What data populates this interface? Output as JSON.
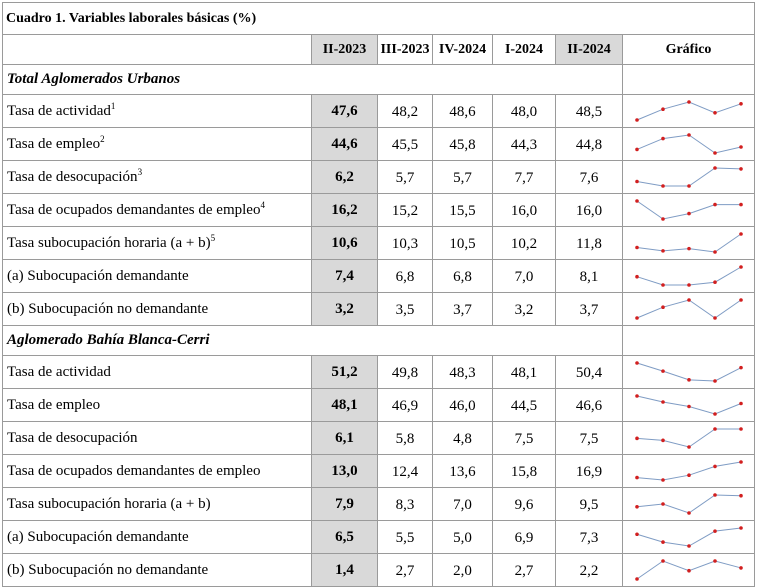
{
  "title": "Cuadro 1. Variables laborales básicas (%)",
  "headers": [
    "II-2023",
    "III-2023",
    "IV-2024",
    "I-2024",
    "II-2024",
    "Gráfico"
  ],
  "sections": [
    {
      "name": "Total Aglomerados Urbanos",
      "rows": [
        {
          "label": "Tasa de actividad",
          "sup": "1",
          "values": [
            "47,6",
            "48,2",
            "48,6",
            "48,0",
            "48,5"
          ]
        },
        {
          "label": "Tasa de empleo",
          "sup": "2",
          "values": [
            "44,6",
            "45,5",
            "45,8",
            "44,3",
            "44,8"
          ]
        },
        {
          "label": "Tasa de desocupación",
          "sup": "3",
          "values": [
            "6,2",
            "5,7",
            "5,7",
            "7,7",
            "7,6"
          ]
        },
        {
          "label": "Tasa de ocupados demandantes de empleo",
          "sup": "4",
          "values": [
            "16,2",
            "15,2",
            "15,5",
            "16,0",
            "16,0"
          ]
        },
        {
          "label": "Tasa subocupación horaria (a + b)",
          "sup": "5",
          "values": [
            "10,6",
            "10,3",
            "10,5",
            "10,2",
            "11,8"
          ]
        },
        {
          "label": "(a) Subocupación demandante",
          "sup": "",
          "values": [
            "7,4",
            "6,8",
            "6,8",
            "7,0",
            "8,1"
          ]
        },
        {
          "label": "(b) Subocupación no demandante",
          "sup": "",
          "values": [
            "3,2",
            "3,5",
            "3,7",
            "3,2",
            "3,7"
          ]
        }
      ]
    },
    {
      "name": "Aglomerado Bahía Blanca-Cerri",
      "rows": [
        {
          "label": "Tasa de actividad",
          "sup": "",
          "values": [
            "51,2",
            "49,8",
            "48,3",
            "48,1",
            "50,4"
          ]
        },
        {
          "label": "Tasa de empleo",
          "sup": "",
          "values": [
            "48,1",
            "46,9",
            "46,0",
            "44,5",
            "46,6"
          ]
        },
        {
          "label": "Tasa de desocupación",
          "sup": "",
          "values": [
            "6,1",
            "5,8",
            "4,8",
            "7,5",
            "7,5"
          ]
        },
        {
          "label": "Tasa de ocupados demandantes de empleo",
          "sup": "",
          "values": [
            "13,0",
            "12,4",
            "13,6",
            "15,8",
            "16,9"
          ]
        },
        {
          "label": "Tasa subocupación horaria (a + b)",
          "sup": "",
          "values": [
            "7,9",
            "8,3",
            "7,0",
            "9,6",
            "9,5"
          ]
        },
        {
          "label": "(a) Subocupación demandante",
          "sup": "",
          "values": [
            "6,5",
            "5,5",
            "5,0",
            "6,9",
            "7,3"
          ]
        },
        {
          "label": "(b) Subocupación no demandante",
          "sup": "",
          "values": [
            "1,4",
            "2,7",
            "2,0",
            "2,7",
            "2,2"
          ]
        }
      ]
    }
  ],
  "colors": {
    "highlight": "#d9d9d9",
    "spark_line": "#7f9cc4",
    "spark_marker": "#d21f1f"
  }
}
